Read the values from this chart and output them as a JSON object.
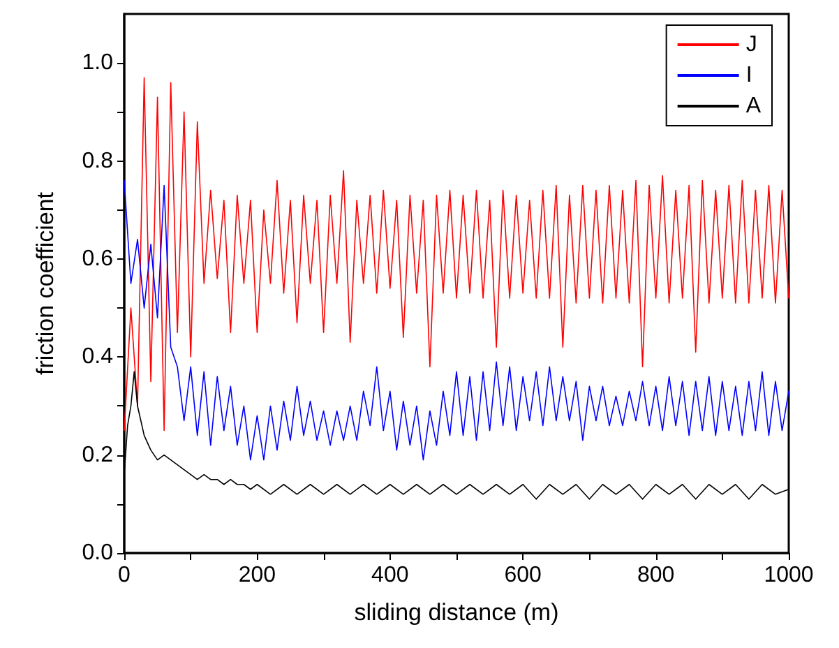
{
  "chart_data": {
    "type": "line",
    "xlabel": "sliding distance (m)",
    "ylabel": "friction coefficient",
    "x": [
      0,
      10,
      20,
      30,
      40,
      50,
      60,
      70,
      80,
      90,
      100,
      110,
      120,
      130,
      140,
      150,
      160,
      170,
      180,
      190,
      200,
      210,
      220,
      230,
      240,
      250,
      260,
      270,
      280,
      290,
      300,
      310,
      320,
      330,
      340,
      350,
      360,
      370,
      380,
      390,
      400,
      410,
      420,
      430,
      440,
      450,
      460,
      470,
      480,
      490,
      500,
      510,
      520,
      530,
      540,
      550,
      560,
      570,
      580,
      590,
      600,
      610,
      620,
      630,
      640,
      650,
      660,
      670,
      680,
      690,
      700,
      710,
      720,
      730,
      740,
      750,
      760,
      770,
      780,
      790,
      800,
      810,
      820,
      830,
      840,
      850,
      860,
      870,
      880,
      890,
      900,
      910,
      920,
      930,
      940,
      950,
      960,
      970,
      980,
      990,
      1000
    ],
    "series": [
      {
        "name": "J",
        "color": "#ff0000",
        "values": [
          0.25,
          0.5,
          0.3,
          0.97,
          0.35,
          0.93,
          0.25,
          0.96,
          0.45,
          0.9,
          0.4,
          0.88,
          0.55,
          0.74,
          0.56,
          0.72,
          0.45,
          0.73,
          0.55,
          0.72,
          0.45,
          0.7,
          0.55,
          0.76,
          0.53,
          0.72,
          0.47,
          0.73,
          0.55,
          0.72,
          0.45,
          0.73,
          0.55,
          0.78,
          0.43,
          0.72,
          0.55,
          0.73,
          0.53,
          0.74,
          0.54,
          0.72,
          0.44,
          0.73,
          0.53,
          0.72,
          0.38,
          0.73,
          0.53,
          0.74,
          0.52,
          0.73,
          0.53,
          0.74,
          0.52,
          0.72,
          0.42,
          0.74,
          0.52,
          0.73,
          0.53,
          0.72,
          0.52,
          0.74,
          0.52,
          0.75,
          0.42,
          0.73,
          0.51,
          0.75,
          0.52,
          0.74,
          0.51,
          0.75,
          0.52,
          0.74,
          0.51,
          0.76,
          0.38,
          0.75,
          0.52,
          0.77,
          0.51,
          0.74,
          0.52,
          0.75,
          0.41,
          0.76,
          0.51,
          0.74,
          0.52,
          0.75,
          0.51,
          0.76,
          0.51,
          0.74,
          0.52,
          0.75,
          0.51,
          0.74,
          0.52
        ]
      },
      {
        "name": "I",
        "color": "#0000ff",
        "values": [
          0.76,
          0.55,
          0.64,
          0.5,
          0.63,
          0.48,
          0.75,
          0.42,
          0.38,
          0.27,
          0.38,
          0.24,
          0.37,
          0.22,
          0.36,
          0.25,
          0.34,
          0.22,
          0.3,
          0.19,
          0.28,
          0.19,
          0.3,
          0.21,
          0.31,
          0.23,
          0.34,
          0.24,
          0.31,
          0.23,
          0.29,
          0.22,
          0.29,
          0.23,
          0.3,
          0.23,
          0.33,
          0.26,
          0.38,
          0.25,
          0.33,
          0.21,
          0.31,
          0.22,
          0.3,
          0.19,
          0.29,
          0.22,
          0.33,
          0.24,
          0.37,
          0.24,
          0.36,
          0.23,
          0.37,
          0.25,
          0.39,
          0.26,
          0.38,
          0.25,
          0.36,
          0.27,
          0.37,
          0.26,
          0.38,
          0.27,
          0.36,
          0.27,
          0.35,
          0.23,
          0.34,
          0.27,
          0.34,
          0.26,
          0.32,
          0.26,
          0.33,
          0.27,
          0.35,
          0.26,
          0.34,
          0.25,
          0.36,
          0.26,
          0.35,
          0.24,
          0.35,
          0.25,
          0.36,
          0.24,
          0.35,
          0.25,
          0.34,
          0.24,
          0.35,
          0.25,
          0.37,
          0.24,
          0.35,
          0.25,
          0.33
        ]
      },
      {
        "name": "A",
        "color": "#000000",
        "x": [
          0,
          5,
          10,
          15,
          20,
          25,
          30,
          40,
          50,
          60,
          70,
          80,
          90,
          100,
          110,
          120,
          130,
          140,
          150,
          160,
          170,
          180,
          190,
          200,
          220,
          240,
          260,
          280,
          300,
          320,
          340,
          360,
          380,
          400,
          420,
          440,
          460,
          480,
          500,
          520,
          540,
          560,
          580,
          600,
          620,
          640,
          660,
          680,
          700,
          720,
          740,
          760,
          780,
          800,
          820,
          840,
          860,
          880,
          900,
          920,
          940,
          960,
          980,
          1000
        ],
        "values": [
          0.16,
          0.26,
          0.3,
          0.37,
          0.3,
          0.27,
          0.24,
          0.21,
          0.19,
          0.2,
          0.19,
          0.18,
          0.17,
          0.16,
          0.15,
          0.16,
          0.15,
          0.15,
          0.14,
          0.15,
          0.14,
          0.14,
          0.13,
          0.14,
          0.12,
          0.14,
          0.12,
          0.14,
          0.12,
          0.14,
          0.12,
          0.14,
          0.12,
          0.14,
          0.12,
          0.14,
          0.12,
          0.14,
          0.12,
          0.14,
          0.12,
          0.14,
          0.12,
          0.14,
          0.11,
          0.14,
          0.12,
          0.14,
          0.11,
          0.14,
          0.12,
          0.14,
          0.11,
          0.14,
          0.12,
          0.14,
          0.11,
          0.14,
          0.12,
          0.14,
          0.11,
          0.14,
          0.12,
          0.13
        ]
      }
    ],
    "xlim": [
      0,
      1000
    ],
    "xticks": [
      0,
      {
        "value": 100,
        "label": null
      },
      200,
      {
        "value": 300,
        "label": null
      },
      400,
      {
        "value": 500,
        "label": null
      },
      600,
      {
        "value": 700,
        "label": null
      },
      800,
      {
        "value": 900,
        "label": null
      },
      1000
    ],
    "ylim": [
      0,
      1.1
    ],
    "yticks": [
      {
        "value": 0,
        "label": "0.0"
      },
      {
        "value": 0.1,
        "label": null
      },
      0.2,
      {
        "value": 0.3,
        "label": null
      },
      0.4,
      {
        "value": 0.5,
        "label": null
      },
      0.6,
      {
        "value": 0.7,
        "label": null
      },
      0.8,
      {
        "value": 0.9,
        "label": null
      },
      {
        "value": 1,
        "label": "1.0"
      }
    ],
    "grid": false,
    "legend": "top right",
    "marker": "none",
    "line_style": "solid"
  }
}
